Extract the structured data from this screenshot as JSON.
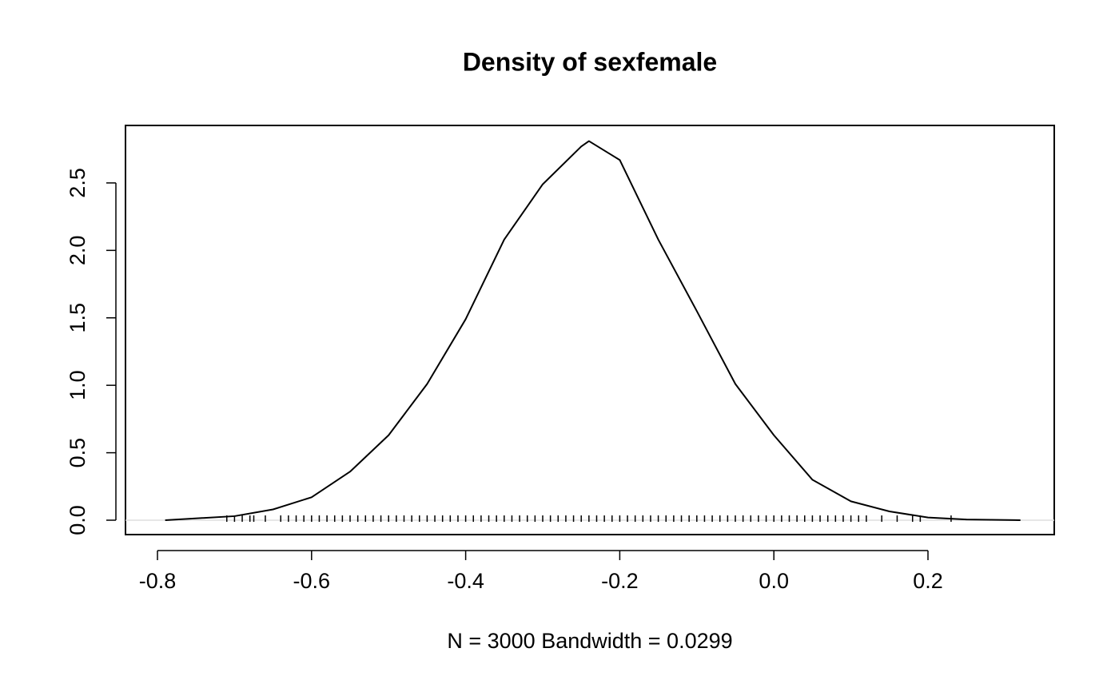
{
  "chart_data": {
    "type": "line",
    "title": "Density of sexfemale",
    "xlabel": "N = 3000   Bandwidth = 0.0299",
    "x": [
      -0.79,
      -0.7,
      -0.65,
      -0.6,
      -0.55,
      -0.5,
      -0.45,
      -0.4,
      -0.35,
      -0.3,
      -0.25,
      -0.24,
      -0.2,
      -0.15,
      -0.1,
      -0.05,
      0.0,
      0.05,
      0.1,
      0.15,
      0.2,
      0.25,
      0.32
    ],
    "series": [
      {
        "color": "#000000",
        "values": [
          0,
          0.03,
          0.08,
          0.17,
          0.36,
          0.63,
          1.01,
          1.49,
          2.08,
          2.49,
          2.77,
          2.81,
          2.67,
          2.08,
          1.55,
          1.01,
          0.63,
          0.3,
          0.14,
          0.065,
          0.02,
          0.005,
          0
        ]
      }
    ],
    "rug": [
      -0.71,
      -0.7,
      -0.69,
      -0.68,
      -0.675,
      -0.66,
      -0.64,
      -0.63,
      -0.62,
      -0.61,
      -0.6,
      -0.59,
      -0.58,
      -0.57,
      -0.56,
      -0.55,
      -0.54,
      -0.53,
      -0.52,
      -0.51,
      -0.5,
      -0.49,
      -0.48,
      -0.47,
      -0.46,
      -0.45,
      -0.44,
      -0.43,
      -0.42,
      -0.41,
      -0.4,
      -0.39,
      -0.38,
      -0.37,
      -0.36,
      -0.35,
      -0.34,
      -0.33,
      -0.32,
      -0.31,
      -0.3,
      -0.29,
      -0.28,
      -0.27,
      -0.26,
      -0.25,
      -0.24,
      -0.23,
      -0.22,
      -0.21,
      -0.2,
      -0.19,
      -0.18,
      -0.17,
      -0.16,
      -0.15,
      -0.14,
      -0.13,
      -0.12,
      -0.11,
      -0.1,
      -0.09,
      -0.08,
      -0.07,
      -0.06,
      -0.05,
      -0.04,
      -0.03,
      -0.02,
      -0.01,
      0.0,
      0.01,
      0.02,
      0.03,
      0.04,
      0.05,
      0.06,
      0.07,
      0.08,
      0.09,
      0.1,
      0.11,
      0.12,
      0.14,
      0.16,
      0.18,
      0.19,
      0.23
    ],
    "xlim": [
      -0.8415,
      0.3639
    ],
    "ylim": [
      -0.1066,
      2.926
    ],
    "xticks": [
      -0.8,
      -0.6,
      -0.4,
      -0.2,
      {
        "value": 0,
        "label": "0.0"
      },
      0.2
    ],
    "yticks": [
      {
        "value": 0,
        "label": "0.0"
      },
      0.5,
      {
        "value": 1,
        "label": "1.0"
      },
      1.5,
      {
        "value": 2,
        "label": "2.0"
      },
      2.5
    ]
  }
}
